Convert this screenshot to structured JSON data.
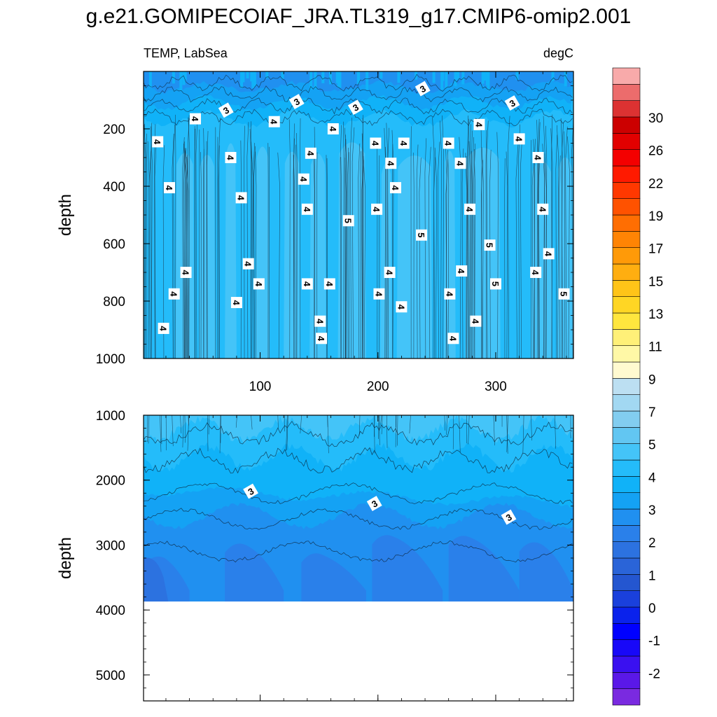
{
  "chart_data": [
    {
      "type": "heatmap",
      "panel": "upper",
      "title": "g.e21.GOMIPECOIAF_JRA.TL319_g17.CMIP6-omip2.001",
      "left_subtitle": "TEMP, LabSea",
      "right_subtitle": "degC",
      "ylabel": "depth",
      "xlabel": "",
      "xlim": [
        1,
        366
      ],
      "ylim": [
        1000,
        0
      ],
      "xticks": [
        100,
        200,
        300
      ],
      "yticks": [
        200,
        400,
        600,
        800,
        1000
      ],
      "depth_bands_degC": [
        {
          "depth": [
            0,
            60
          ],
          "temp": [
            2.5,
            3.0
          ]
        },
        {
          "depth": [
            60,
            200
          ],
          "temp": [
            3.0,
            4.0
          ]
        },
        {
          "depth": [
            200,
            1000
          ],
          "temp": [
            4.0,
            5.0
          ]
        }
      ],
      "contour_labels": [
        {
          "x": 238,
          "y": 60,
          "text": "3"
        },
        {
          "x": 131,
          "y": 105,
          "text": "3"
        },
        {
          "x": 71,
          "y": 135,
          "text": "3"
        },
        {
          "x": 181,
          "y": 125,
          "text": "3"
        },
        {
          "x": 314,
          "y": 110,
          "text": "3"
        },
        {
          "x": 45,
          "y": 165,
          "text": "4"
        },
        {
          "x": 112,
          "y": 175,
          "text": "4"
        },
        {
          "x": 162,
          "y": 200,
          "text": "4"
        },
        {
          "x": 286,
          "y": 185,
          "text": "4"
        },
        {
          "x": 13,
          "y": 245,
          "text": "4"
        },
        {
          "x": 75,
          "y": 300,
          "text": "4"
        },
        {
          "x": 143,
          "y": 285,
          "text": "4"
        },
        {
          "x": 198,
          "y": 250,
          "text": "4"
        },
        {
          "x": 222,
          "y": 250,
          "text": "4"
        },
        {
          "x": 260,
          "y": 250,
          "text": "4"
        },
        {
          "x": 320,
          "y": 235,
          "text": "4"
        },
        {
          "x": 336,
          "y": 300,
          "text": "4"
        },
        {
          "x": 211,
          "y": 320,
          "text": "4"
        },
        {
          "x": 270,
          "y": 320,
          "text": "4"
        },
        {
          "x": 23,
          "y": 405,
          "text": "4"
        },
        {
          "x": 137,
          "y": 375,
          "text": "4"
        },
        {
          "x": 84,
          "y": 440,
          "text": "4"
        },
        {
          "x": 215,
          "y": 405,
          "text": "4"
        },
        {
          "x": 140,
          "y": 480,
          "text": "4"
        },
        {
          "x": 199,
          "y": 480,
          "text": "4"
        },
        {
          "x": 278,
          "y": 480,
          "text": "4"
        },
        {
          "x": 340,
          "y": 480,
          "text": "4"
        },
        {
          "x": 175,
          "y": 520,
          "text": "5"
        },
        {
          "x": 237,
          "y": 570,
          "text": "5"
        },
        {
          "x": 295,
          "y": 605,
          "text": "5"
        },
        {
          "x": 90,
          "y": 670,
          "text": "4"
        },
        {
          "x": 345,
          "y": 635,
          "text": "4"
        },
        {
          "x": 37,
          "y": 700,
          "text": "4"
        },
        {
          "x": 210,
          "y": 700,
          "text": "4"
        },
        {
          "x": 271,
          "y": 695,
          "text": "4"
        },
        {
          "x": 334,
          "y": 700,
          "text": "4"
        },
        {
          "x": 99,
          "y": 740,
          "text": "4"
        },
        {
          "x": 140,
          "y": 740,
          "text": "4"
        },
        {
          "x": 159,
          "y": 740,
          "text": "4"
        },
        {
          "x": 300,
          "y": 740,
          "text": "5"
        },
        {
          "x": 27,
          "y": 775,
          "text": "4"
        },
        {
          "x": 201,
          "y": 775,
          "text": "4"
        },
        {
          "x": 261,
          "y": 775,
          "text": "4"
        },
        {
          "x": 358,
          "y": 775,
          "text": "5"
        },
        {
          "x": 80,
          "y": 805,
          "text": "4"
        },
        {
          "x": 220,
          "y": 820,
          "text": "4"
        },
        {
          "x": 151,
          "y": 870,
          "text": "4"
        },
        {
          "x": 283,
          "y": 870,
          "text": "4"
        },
        {
          "x": 18,
          "y": 895,
          "text": "4"
        },
        {
          "x": 152,
          "y": 930,
          "text": "4"
        },
        {
          "x": 264,
          "y": 930,
          "text": "4"
        }
      ]
    },
    {
      "type": "heatmap",
      "panel": "lower",
      "ylabel": "depth",
      "xlabel": "",
      "xlim": [
        1,
        366
      ],
      "ylim": [
        5400,
        1000
      ],
      "yticks": [
        1000,
        2000,
        3000,
        4000,
        5000
      ],
      "data_bottom_depth": 3870,
      "depth_bands_degC": [
        {
          "depth": [
            1000,
            1800
          ],
          "temp": [
            4.0,
            4.5
          ]
        },
        {
          "depth": [
            1800,
            2500
          ],
          "temp": [
            3.0,
            3.5
          ]
        },
        {
          "depth": [
            2500,
            3870
          ],
          "temp": [
            2.5,
            3.0
          ]
        }
      ],
      "contour_labels": [
        {
          "x": 92,
          "y": 2170,
          "text": "3"
        },
        {
          "x": 197,
          "y": 2360,
          "text": "3"
        },
        {
          "x": 311,
          "y": 2570,
          "text": "3"
        }
      ]
    }
  ],
  "colorbar": {
    "levels": [
      -3,
      -2.5,
      -2,
      -1.5,
      -1,
      -0.5,
      0,
      0.5,
      1,
      1.5,
      2,
      2.5,
      3,
      3.5,
      4,
      4.5,
      5,
      5.5,
      6,
      6.5,
      7,
      8,
      9,
      10,
      11,
      12,
      13,
      14,
      15,
      16,
      17,
      18,
      19,
      20,
      21,
      22,
      24,
      26,
      28,
      30
    ],
    "tick_labels": [
      "-2",
      "-1",
      "0",
      "1",
      "2",
      "3",
      "4",
      "5",
      "7",
      "9",
      "11",
      "13",
      "15",
      "17",
      "19",
      "22",
      "26",
      "30"
    ],
    "colors": [
      "#7a2ae0",
      "#5a18e8",
      "#3a10f0",
      "#1808f8",
      "#0000ff",
      "#0a22ec",
      "#1a40dc",
      "#2456d0",
      "#2a64d8",
      "#2c72e0",
      "#2a80ea",
      "#2090f0",
      "#14a2f4",
      "#10b2f8",
      "#24bcfa",
      "#44c4f8",
      "#62c6f2",
      "#82cdf0",
      "#a2d8f2",
      "#bcdff2",
      "#fffad0",
      "#fff8a6",
      "#fff078",
      "#ffe63e",
      "#ffd624",
      "#ffc418",
      "#ffae10",
      "#ff9a08",
      "#ff8404",
      "#ff6e02",
      "#ff5200",
      "#ff3800",
      "#ff1a00",
      "#f40000",
      "#e20000",
      "#cc0000",
      "#dc3232",
      "#ec6c6c",
      "#f8aaaa"
    ]
  }
}
